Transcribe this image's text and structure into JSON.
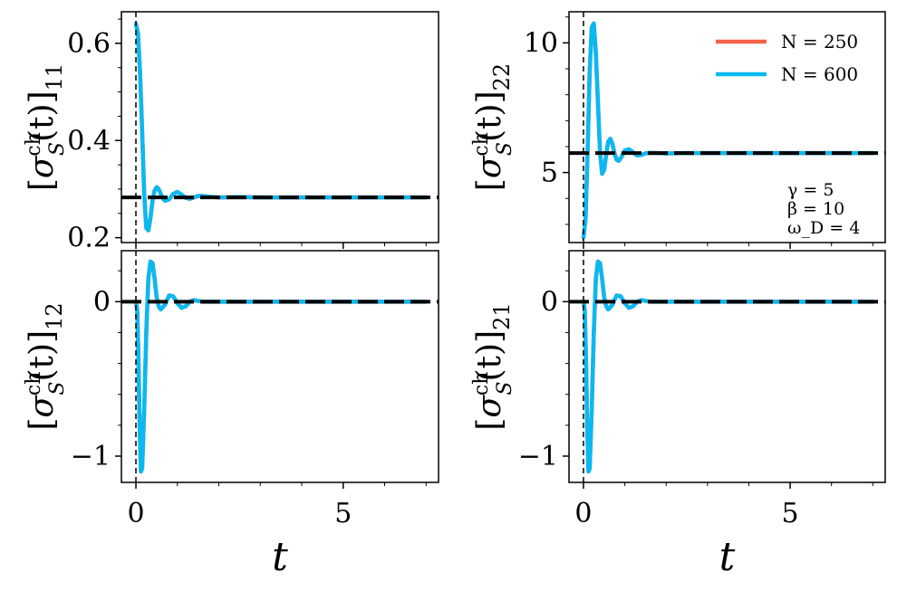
{
  "chart_data": [
    {
      "type": "line",
      "panel": "top-left",
      "ylabel": "[σ_S^ch(t)]_11",
      "ylabel_parts": {
        "open": "[",
        "sigma": "σ",
        "sup": "ch",
        "sub": "S",
        "arg": "(t)",
        "close": "]",
        "index": "11"
      },
      "xlim": [
        -0.35,
        7.3
      ],
      "ylim": [
        0.19,
        0.665
      ],
      "yticks": [
        0.2,
        0.4,
        0.6
      ],
      "ytick_labels": [
        "0.2",
        "0.4",
        "0.6"
      ],
      "yminor": [
        0.25,
        0.3,
        0.35,
        0.45,
        0.5,
        0.55,
        0.65
      ],
      "xticks": [
        0,
        5
      ],
      "show_xticklabels": false,
      "steady_state": 0.283,
      "series": [
        {
          "name": "N = 250",
          "color": "#f4624a",
          "x": [
            0,
            0.05,
            0.1,
            0.15,
            0.2,
            0.25,
            0.3,
            0.35,
            0.4,
            0.45,
            0.5,
            0.55,
            0.6,
            0.65,
            0.7,
            0.8,
            0.9,
            1.0,
            1.1,
            1.2,
            1.3,
            1.4,
            1.5,
            1.6,
            1.8,
            2.0,
            2.5,
            3.0,
            4.0,
            5.0,
            6.0,
            7.0
          ],
          "y": [
            0.64,
            0.62,
            0.54,
            0.42,
            0.29,
            0.22,
            0.215,
            0.24,
            0.275,
            0.297,
            0.304,
            0.3,
            0.29,
            0.281,
            0.276,
            0.279,
            0.29,
            0.294,
            0.289,
            0.282,
            0.28,
            0.283,
            0.286,
            0.286,
            0.284,
            0.283,
            0.2835,
            0.283,
            0.283,
            0.283,
            0.283,
            0.283
          ]
        },
        {
          "name": "N = 600",
          "color": "#0ab9f1",
          "x": [
            0,
            0.05,
            0.1,
            0.15,
            0.2,
            0.25,
            0.3,
            0.35,
            0.4,
            0.45,
            0.5,
            0.55,
            0.6,
            0.65,
            0.7,
            0.8,
            0.9,
            1.0,
            1.1,
            1.2,
            1.3,
            1.4,
            1.5,
            1.6,
            1.8,
            2.0,
            2.5,
            3.0,
            4.0,
            5.0,
            6.0,
            7.0
          ],
          "y": [
            0.64,
            0.62,
            0.54,
            0.42,
            0.29,
            0.22,
            0.215,
            0.24,
            0.275,
            0.297,
            0.304,
            0.3,
            0.29,
            0.281,
            0.276,
            0.279,
            0.29,
            0.294,
            0.289,
            0.282,
            0.28,
            0.283,
            0.286,
            0.286,
            0.284,
            0.283,
            0.2835,
            0.283,
            0.283,
            0.283,
            0.283,
            0.283
          ]
        }
      ]
    },
    {
      "type": "line",
      "panel": "top-right",
      "ylabel": "[σ_S^ch(t)]_22",
      "ylabel_parts": {
        "open": "[",
        "sigma": "σ",
        "sup": "ch",
        "sub": "S",
        "arg": "(t)",
        "close": "]",
        "index": "22"
      },
      "xlim": [
        -0.35,
        7.3
      ],
      "ylim": [
        2.3,
        11.2
      ],
      "yticks": [
        5,
        10
      ],
      "ytick_labels": [
        "5",
        "10"
      ],
      "yminor": [
        3,
        4,
        6,
        7,
        8,
        9,
        11
      ],
      "xticks": [
        0,
        5
      ],
      "show_xticklabels": false,
      "steady_state": 5.75,
      "series": [
        {
          "name": "N = 250",
          "color": "#f4624a",
          "x": [
            0,
            0.05,
            0.1,
            0.15,
            0.2,
            0.25,
            0.3,
            0.35,
            0.4,
            0.45,
            0.5,
            0.55,
            0.6,
            0.65,
            0.7,
            0.75,
            0.8,
            0.85,
            0.9,
            1.0,
            1.1,
            1.2,
            1.3,
            1.4,
            1.5,
            1.6,
            1.8,
            2.0,
            2.5,
            3.0,
            4.0,
            5.0,
            6.0,
            7.0
          ],
          "y": [
            2.5,
            3.2,
            5.8,
            8.9,
            10.6,
            10.75,
            9.6,
            7.7,
            5.8,
            4.95,
            5.1,
            5.7,
            6.2,
            6.3,
            6.1,
            5.75,
            5.5,
            5.45,
            5.55,
            5.85,
            5.9,
            5.78,
            5.66,
            5.68,
            5.74,
            5.76,
            5.75,
            5.74,
            5.75,
            5.75,
            5.75,
            5.75,
            5.75,
            5.75
          ]
        },
        {
          "name": "N = 600",
          "color": "#0ab9f1",
          "x": [
            0,
            0.05,
            0.1,
            0.15,
            0.2,
            0.25,
            0.3,
            0.35,
            0.4,
            0.45,
            0.5,
            0.55,
            0.6,
            0.65,
            0.7,
            0.75,
            0.8,
            0.85,
            0.9,
            1.0,
            1.1,
            1.2,
            1.3,
            1.4,
            1.5,
            1.6,
            1.8,
            2.0,
            2.5,
            3.0,
            4.0,
            5.0,
            6.0,
            7.0
          ],
          "y": [
            2.5,
            3.2,
            5.8,
            8.9,
            10.6,
            10.75,
            9.6,
            7.7,
            5.8,
            4.95,
            5.1,
            5.7,
            6.2,
            6.3,
            6.1,
            5.75,
            5.5,
            5.45,
            5.55,
            5.85,
            5.9,
            5.78,
            5.66,
            5.68,
            5.74,
            5.76,
            5.75,
            5.74,
            5.75,
            5.75,
            5.75,
            5.75,
            5.75,
            5.75
          ]
        }
      ],
      "legend": {
        "placement": "top-right",
        "entries": [
          "N = 250",
          "N = 600"
        ]
      },
      "params": [
        "γ = 5",
        "β = 10",
        "ω_D = 4"
      ]
    },
    {
      "type": "line",
      "panel": "bottom-left",
      "ylabel": "[σ_S^ch(t)]_12",
      "ylabel_parts": {
        "open": "[",
        "sigma": "σ",
        "sup": "ch",
        "sub": "S",
        "arg": "(t)",
        "close": "]",
        "index": "12"
      },
      "xlabel": "t",
      "xlim": [
        -0.35,
        7.3
      ],
      "ylim": [
        -1.17,
        0.33
      ],
      "yticks": [
        -1,
        0
      ],
      "ytick_labels": [
        "−1",
        "0"
      ],
      "yminor": [
        -0.8,
        -0.6,
        -0.4,
        -0.2,
        0.2
      ],
      "xticks": [
        0,
        5
      ],
      "xtick_labels": [
        "0",
        "5"
      ],
      "xminor": [
        1,
        2,
        3,
        4,
        6,
        7
      ],
      "show_xticklabels": true,
      "steady_state": 0.0,
      "series": [
        {
          "name": "N = 250",
          "color": "#f4624a",
          "x": [
            0,
            0.03,
            0.06,
            0.09,
            0.12,
            0.15,
            0.2,
            0.25,
            0.3,
            0.35,
            0.4,
            0.45,
            0.5,
            0.55,
            0.6,
            0.7,
            0.8,
            0.9,
            1.0,
            1.1,
            1.2,
            1.3,
            1.4,
            1.5,
            1.6,
            1.8,
            2.0,
            2.5,
            3.0,
            4.0,
            5.0,
            6.0,
            7.0
          ],
          "y": [
            0,
            -0.05,
            -0.35,
            -0.8,
            -1.1,
            -1.08,
            -0.7,
            -0.2,
            0.15,
            0.26,
            0.25,
            0.15,
            0.03,
            -0.03,
            -0.05,
            -0.02,
            0.04,
            0.035,
            -0.01,
            -0.04,
            -0.03,
            0.0,
            0.01,
            0.005,
            0.0,
            0.0,
            0.0,
            0.0,
            0.0,
            0.0,
            0.0,
            0.0,
            0.0
          ]
        },
        {
          "name": "N = 600",
          "color": "#0ab9f1",
          "x": [
            0,
            0.03,
            0.06,
            0.09,
            0.12,
            0.15,
            0.2,
            0.25,
            0.3,
            0.35,
            0.4,
            0.45,
            0.5,
            0.55,
            0.6,
            0.7,
            0.8,
            0.9,
            1.0,
            1.1,
            1.2,
            1.3,
            1.4,
            1.5,
            1.6,
            1.8,
            2.0,
            2.5,
            3.0,
            4.0,
            5.0,
            6.0,
            7.0
          ],
          "y": [
            0,
            -0.05,
            -0.35,
            -0.8,
            -1.1,
            -1.08,
            -0.7,
            -0.2,
            0.15,
            0.26,
            0.25,
            0.15,
            0.03,
            -0.03,
            -0.05,
            -0.02,
            0.04,
            0.035,
            -0.01,
            -0.04,
            -0.03,
            0.0,
            0.01,
            0.005,
            0.0,
            0.0,
            0.0,
            0.0,
            0.0,
            0.0,
            0.0,
            0.0,
            0.0
          ]
        }
      ]
    },
    {
      "type": "line",
      "panel": "bottom-right",
      "ylabel": "[σ_S^ch(t)]_21",
      "ylabel_parts": {
        "open": "[",
        "sigma": "σ",
        "sup": "ch",
        "sub": "S",
        "arg": "(t)",
        "close": "]",
        "index": "21"
      },
      "xlabel": "t",
      "xlim": [
        -0.35,
        7.3
      ],
      "ylim": [
        -1.17,
        0.33
      ],
      "yticks": [
        -1,
        0
      ],
      "ytick_labels": [
        "−1",
        "0"
      ],
      "yminor": [
        -0.8,
        -0.6,
        -0.4,
        -0.2,
        0.2
      ],
      "xticks": [
        0,
        5
      ],
      "xtick_labels": [
        "0",
        "5"
      ],
      "xminor": [
        1,
        2,
        3,
        4,
        6,
        7
      ],
      "show_xticklabels": true,
      "steady_state": 0.0,
      "series": [
        {
          "name": "N = 250",
          "color": "#f4624a",
          "x": [
            0,
            0.03,
            0.06,
            0.09,
            0.12,
            0.15,
            0.2,
            0.25,
            0.3,
            0.35,
            0.4,
            0.45,
            0.5,
            0.55,
            0.6,
            0.7,
            0.8,
            0.9,
            1.0,
            1.1,
            1.2,
            1.3,
            1.4,
            1.5,
            1.6,
            1.8,
            2.0,
            2.5,
            3.0,
            4.0,
            5.0,
            6.0,
            7.0
          ],
          "y": [
            0,
            -0.05,
            -0.35,
            -0.8,
            -1.1,
            -1.08,
            -0.7,
            -0.2,
            0.15,
            0.26,
            0.25,
            0.15,
            0.03,
            -0.03,
            -0.05,
            -0.02,
            0.04,
            0.035,
            -0.01,
            -0.04,
            -0.03,
            0.0,
            0.01,
            0.005,
            0.0,
            0.0,
            0.0,
            0.0,
            0.0,
            0.0,
            0.0,
            0.0,
            0.0
          ]
        },
        {
          "name": "N = 600",
          "color": "#0ab9f1",
          "x": [
            0,
            0.03,
            0.06,
            0.09,
            0.12,
            0.15,
            0.2,
            0.25,
            0.3,
            0.35,
            0.4,
            0.45,
            0.5,
            0.55,
            0.6,
            0.7,
            0.8,
            0.9,
            1.0,
            1.1,
            1.2,
            1.3,
            1.4,
            1.5,
            1.6,
            1.8,
            2.0,
            2.5,
            3.0,
            4.0,
            5.0,
            6.0,
            7.0
          ],
          "y": [
            0,
            -0.05,
            -0.35,
            -0.8,
            -1.1,
            -1.08,
            -0.7,
            -0.2,
            0.15,
            0.26,
            0.25,
            0.15,
            0.03,
            -0.03,
            -0.05,
            -0.02,
            0.04,
            0.035,
            -0.01,
            -0.04,
            -0.03,
            0.0,
            0.01,
            0.005,
            0.0,
            0.0,
            0.0,
            0.0,
            0.0,
            0.0,
            0.0,
            0.0,
            0.0
          ]
        }
      ]
    }
  ],
  "colors": {
    "n250": "#f4624a",
    "n600": "#0ab9f1",
    "steady": "#000000",
    "axes": "#000000"
  }
}
